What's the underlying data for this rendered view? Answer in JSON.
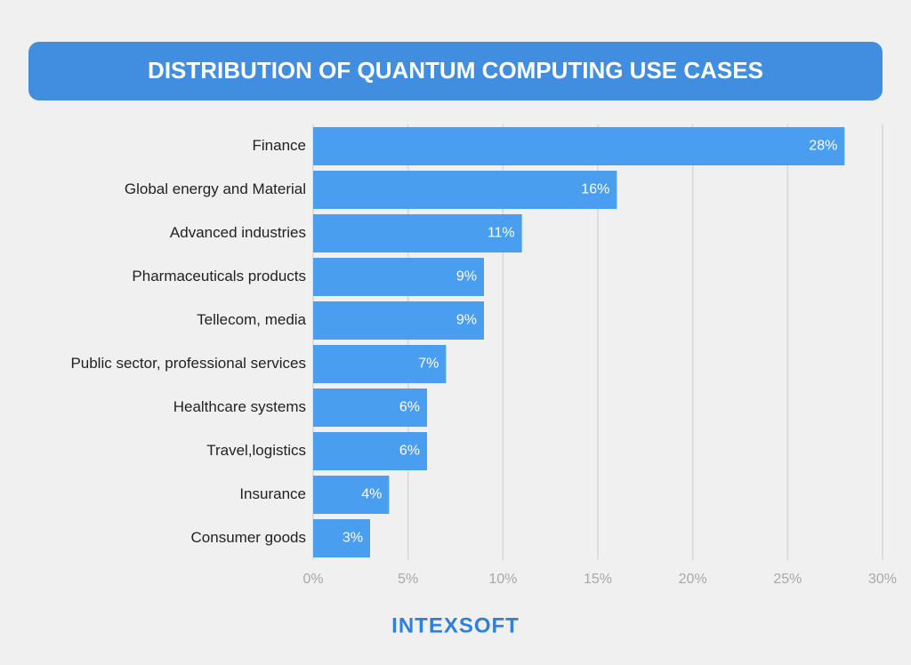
{
  "chart_data": {
    "type": "bar",
    "orientation": "horizontal",
    "title": "DISTRIBUTION OF QUANTUM COMPUTING USE CASES",
    "categories": [
      "Finance",
      "Global energy and Material",
      "Advanced industries",
      "Pharmaceuticals products",
      "Tellecom, media",
      "Public sector, professional services",
      "Healthcare systems",
      "Travel,logistics",
      "Insurance",
      "Consumer goods"
    ],
    "values": [
      28,
      16,
      11,
      9,
      9,
      7,
      6,
      6,
      4,
      3
    ],
    "value_labels": [
      "28%",
      "16%",
      "11%",
      "9%",
      "9%",
      "7%",
      "6%",
      "6%",
      "4%",
      "3%"
    ],
    "color": "#4a9ef0",
    "xlim": [
      0,
      30
    ],
    "xticks": [
      {
        "value": 0,
        "label": "0%"
      },
      {
        "value": 5,
        "label": "5%"
      },
      {
        "value": 10,
        "label": "10%"
      },
      {
        "value": 15,
        "label": "15%"
      },
      {
        "value": 20,
        "label": "20%"
      },
      {
        "value": 25,
        "label": "25%"
      },
      {
        "value": 30,
        "label": "30%"
      }
    ],
    "grid": true
  },
  "logo": "INTEXSOFT"
}
